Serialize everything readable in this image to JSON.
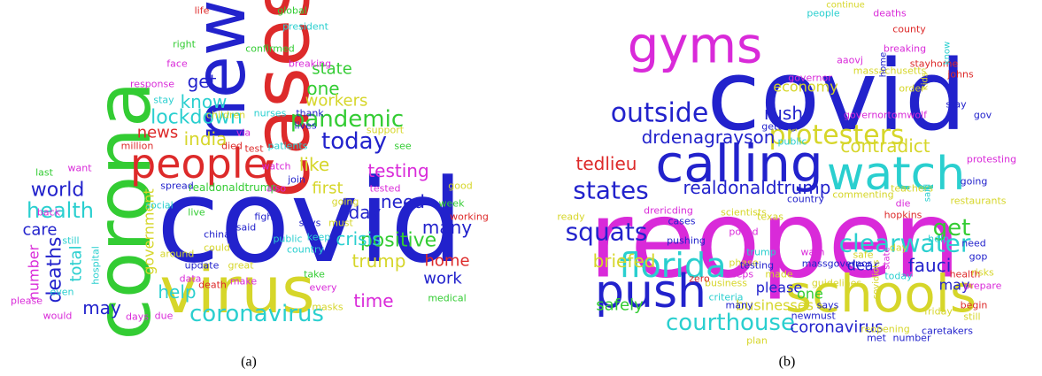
{
  "panels": [
    {
      "caption": "(a)",
      "words": [
        {
          "text": "covid",
          "color": "#2222cc"
        },
        {
          "text": "virus",
          "color": "#d6d62a"
        },
        {
          "text": "corona",
          "color": "#33cc33"
        },
        {
          "text": "cases",
          "color": "#dd2a2a"
        },
        {
          "text": "new",
          "color": "#2222cc"
        },
        {
          "text": "people",
          "color": "#dd2a2a"
        },
        {
          "text": "pandemic",
          "color": "#33cc33"
        },
        {
          "text": "today",
          "color": "#2222cc"
        },
        {
          "text": "coronavirus",
          "color": "#2acfcf"
        },
        {
          "text": "lockdown",
          "color": "#2acfcf"
        },
        {
          "text": "health",
          "color": "#2acfcf"
        },
        {
          "text": "world",
          "color": "#2222cc"
        },
        {
          "text": "care",
          "color": "#2222cc"
        },
        {
          "text": "deaths",
          "color": "#2222cc"
        },
        {
          "text": "total",
          "color": "#2acfcf"
        },
        {
          "text": "number",
          "color": "#d92ad9"
        },
        {
          "text": "news",
          "color": "#dd2a2a"
        },
        {
          "text": "india",
          "color": "#d6d62a"
        },
        {
          "text": "know",
          "color": "#2acfcf"
        },
        {
          "text": "get",
          "color": "#2222cc"
        },
        {
          "text": "one",
          "color": "#33cc33"
        },
        {
          "text": "state",
          "color": "#33cc33"
        },
        {
          "text": "workers",
          "color": "#d6d62a"
        },
        {
          "text": "like",
          "color": "#d6d62a"
        },
        {
          "text": "testing",
          "color": "#d92ad9"
        },
        {
          "text": "first",
          "color": "#d6d62a"
        },
        {
          "text": "need",
          "color": "#2222cc"
        },
        {
          "text": "positive",
          "color": "#33cc33"
        },
        {
          "text": "many",
          "color": "#2222cc"
        },
        {
          "text": "day",
          "color": "#2222cc"
        },
        {
          "text": "home",
          "color": "#dd2a2a"
        },
        {
          "text": "work",
          "color": "#2222cc"
        },
        {
          "text": "trump",
          "color": "#d6d62a"
        },
        {
          "text": "crisis",
          "color": "#2acfcf"
        },
        {
          "text": "time",
          "color": "#d92ad9"
        },
        {
          "text": "help",
          "color": "#2acfcf"
        },
        {
          "text": "may",
          "color": "#2222cc"
        },
        {
          "text": "government",
          "color": "#d6d62a"
        },
        {
          "text": "life",
          "color": "#dd2a2a"
        },
        {
          "text": "global",
          "color": "#33cc33"
        },
        {
          "text": "president",
          "color": "#2acfcf"
        },
        {
          "text": "right",
          "color": "#33cc33"
        },
        {
          "text": "face",
          "color": "#d92ad9"
        },
        {
          "text": "confirmed",
          "color": "#33cc33"
        },
        {
          "text": "breaking",
          "color": "#d92ad9"
        },
        {
          "text": "response",
          "color": "#d92ad9"
        },
        {
          "text": "stay",
          "color": "#2acfcf"
        },
        {
          "text": "children",
          "color": "#d6d62a"
        },
        {
          "text": "via",
          "color": "#d92ad9"
        },
        {
          "text": "nurses",
          "color": "#2acfcf"
        },
        {
          "text": "thank",
          "color": "#2222cc"
        },
        {
          "text": "lives",
          "color": "#2222cc"
        },
        {
          "text": "died",
          "color": "#dd2a2a"
        },
        {
          "text": "test",
          "color": "#dd2a2a"
        },
        {
          "text": "million",
          "color": "#dd2a2a"
        },
        {
          "text": "patients",
          "color": "#2acfcf"
        },
        {
          "text": "watch",
          "color": "#d92ad9"
        },
        {
          "text": "join",
          "color": "#2222cc"
        },
        {
          "text": "see",
          "color": "#33cc33"
        },
        {
          "text": "want",
          "color": "#d92ad9"
        },
        {
          "text": "last",
          "color": "#33cc33"
        },
        {
          "text": "back",
          "color": "#d92ad9"
        },
        {
          "text": "realdonaldtrump",
          "color": "#33cc33"
        },
        {
          "text": "also",
          "color": "#d92ad9"
        },
        {
          "text": "tested",
          "color": "#d92ad9"
        },
        {
          "text": "support",
          "color": "#d6d62a"
        },
        {
          "text": "spread",
          "color": "#2222cc"
        },
        {
          "text": "social",
          "color": "#2acfcf"
        },
        {
          "text": "good",
          "color": "#d6d62a"
        },
        {
          "text": "week",
          "color": "#33cc33"
        },
        {
          "text": "working",
          "color": "#dd2a2a"
        },
        {
          "text": "still",
          "color": "#2acfcf"
        },
        {
          "text": "hospital",
          "color": "#2acfcf"
        },
        {
          "text": "around",
          "color": "#d6d62a"
        },
        {
          "text": "live",
          "color": "#33cc33"
        },
        {
          "text": "china",
          "color": "#2222cc"
        },
        {
          "text": "could",
          "color": "#d6d62a"
        },
        {
          "text": "said",
          "color": "#2222cc"
        },
        {
          "text": "fight",
          "color": "#2222cc"
        },
        {
          "text": "says",
          "color": "#2222cc"
        },
        {
          "text": "keep",
          "color": "#2acfcf"
        },
        {
          "text": "must",
          "color": "#d6d62a"
        },
        {
          "text": "public",
          "color": "#2acfcf"
        },
        {
          "text": "country",
          "color": "#2acfcf"
        },
        {
          "text": "update",
          "color": "#2222cc"
        },
        {
          "text": "great",
          "color": "#d6d62a"
        },
        {
          "text": "death",
          "color": "#dd2a2a"
        },
        {
          "text": "data",
          "color": "#d92ad9"
        },
        {
          "text": "make",
          "color": "#d92ad9"
        },
        {
          "text": "take",
          "color": "#33cc33"
        },
        {
          "text": "every",
          "color": "#d92ad9"
        },
        {
          "text": "masks",
          "color": "#d6d62a"
        },
        {
          "text": "days",
          "color": "#d92ad9"
        },
        {
          "text": "due",
          "color": "#d92ad9"
        },
        {
          "text": "medical",
          "color": "#33cc33"
        },
        {
          "text": "please",
          "color": "#d92ad9"
        },
        {
          "text": "even",
          "color": "#2acfcf"
        },
        {
          "text": "would",
          "color": "#d92ad9"
        },
        {
          "text": "going",
          "color": "#d6d62a"
        }
      ]
    },
    {
      "caption": "(b)",
      "words": [
        {
          "text": "reopen",
          "color": "#d92ad9"
        },
        {
          "text": "covid",
          "color": "#2222cc"
        },
        {
          "text": "calling",
          "color": "#2222cc"
        },
        {
          "text": "watch",
          "color": "#2acfcf"
        },
        {
          "text": "gyms",
          "color": "#d92ad9"
        },
        {
          "text": "schools",
          "color": "#d6d62a"
        },
        {
          "text": "push",
          "color": "#2222cc"
        },
        {
          "text": "florida",
          "color": "#2acfcf"
        },
        {
          "text": "outside",
          "color": "#2222cc"
        },
        {
          "text": "protesters",
          "color": "#d6d62a"
        },
        {
          "text": "states",
          "color": "#2222cc"
        },
        {
          "text": "squats",
          "color": "#2222cc"
        },
        {
          "text": "courthouse",
          "color": "#2acfcf"
        },
        {
          "text": "clearwater",
          "color": "#2acfcf"
        },
        {
          "text": "get",
          "color": "#33cc33"
        },
        {
          "text": "fauci",
          "color": "#2222cc"
        },
        {
          "text": "dear",
          "color": "#2222cc"
        },
        {
          "text": "drdenagrayson",
          "color": "#2222cc"
        },
        {
          "text": "contradict",
          "color": "#d6d62a"
        },
        {
          "text": "realdonaldtrump",
          "color": "#2222cc"
        },
        {
          "text": "tedlieu",
          "color": "#dd2a2a"
        },
        {
          "text": "briefed",
          "color": "#d6d62a"
        },
        {
          "text": "rush",
          "color": "#2222cc"
        },
        {
          "text": "economy",
          "color": "#d6d62a"
        },
        {
          "text": "please",
          "color": "#2222cc"
        },
        {
          "text": "one",
          "color": "#33cc33"
        },
        {
          "text": "businesses",
          "color": "#d6d62a"
        },
        {
          "text": "coronavirus",
          "color": "#2222cc"
        },
        {
          "text": "safely",
          "color": "#33cc33"
        },
        {
          "text": "may",
          "color": "#2222cc"
        },
        {
          "text": "people",
          "color": "#2acfcf"
        },
        {
          "text": "deaths",
          "color": "#d92ad9"
        },
        {
          "text": "continue",
          "color": "#d6d62a"
        },
        {
          "text": "county",
          "color": "#dd2a2a"
        },
        {
          "text": "breaking",
          "color": "#d92ad9"
        },
        {
          "text": "stayhome",
          "color": "#dd2a2a"
        },
        {
          "text": "johns",
          "color": "#dd2a2a"
        },
        {
          "text": "massachusetts",
          "color": "#d6d62a"
        },
        {
          "text": "know",
          "color": "#2acfcf"
        },
        {
          "text": "kids",
          "color": "#d6d62a"
        },
        {
          "text": "health",
          "color": "#dd2a2a"
        },
        {
          "text": "restaurants",
          "color": "#d6d62a"
        },
        {
          "text": "hopkins",
          "color": "#dd2a2a"
        },
        {
          "text": "need",
          "color": "#2222cc"
        },
        {
          "text": "gop",
          "color": "#2222cc"
        },
        {
          "text": "risks",
          "color": "#d6d62a"
        },
        {
          "text": "prepare",
          "color": "#d92ad9"
        },
        {
          "text": "begin",
          "color": "#dd2a2a"
        },
        {
          "text": "still",
          "color": "#d6d62a"
        },
        {
          "text": "friday",
          "color": "#d6d62a"
        },
        {
          "text": "number",
          "color": "#2222cc"
        },
        {
          "text": "caretakers",
          "color": "#2222cc"
        },
        {
          "text": "protesting",
          "color": "#d92ad9"
        },
        {
          "text": "gov",
          "color": "#2222cc"
        },
        {
          "text": "stay",
          "color": "#2222cc"
        },
        {
          "text": "going",
          "color": "#2222cc"
        },
        {
          "text": "aaovj",
          "color": "#d92ad9"
        },
        {
          "text": "home",
          "color": "#2222cc"
        },
        {
          "text": "governor",
          "color": "#d92ad9"
        },
        {
          "text": "order",
          "color": "#d6d62a"
        },
        {
          "text": "governortomwolf",
          "color": "#d92ad9"
        },
        {
          "text": "teachers",
          "color": "#d6d62a"
        },
        {
          "text": "commenting",
          "color": "#d6d62a"
        },
        {
          "text": "said",
          "color": "#2acfcf"
        },
        {
          "text": "die",
          "color": "#d92ad9"
        },
        {
          "text": "country",
          "color": "#2222cc"
        },
        {
          "text": "drericding",
          "color": "#d92ad9"
        },
        {
          "text": "scientists",
          "color": "#d6d62a"
        },
        {
          "text": "cases",
          "color": "#2222cc"
        },
        {
          "text": "texas",
          "color": "#d6d62a"
        },
        {
          "text": "ready",
          "color": "#d6d62a"
        },
        {
          "text": "pushing",
          "color": "#2222cc"
        },
        {
          "text": "trump",
          "color": "#2acfcf"
        },
        {
          "text": "phase",
          "color": "#d6d62a"
        },
        {
          "text": "warn",
          "color": "#d92ad9"
        },
        {
          "text": "safe",
          "color": "#d6d62a"
        },
        {
          "text": "massgovernor",
          "color": "#2222cc"
        },
        {
          "text": "testing",
          "color": "#2222cc"
        },
        {
          "text": "covidiots",
          "color": "#d6d62a"
        },
        {
          "text": "state",
          "color": "#d92ad9"
        },
        {
          "text": "day",
          "color": "#d6d62a"
        },
        {
          "text": "today",
          "color": "#2acfcf"
        },
        {
          "text": "help",
          "color": "#2acfcf"
        },
        {
          "text": "business",
          "color": "#d6d62a"
        },
        {
          "text": "zero",
          "color": "#dd2a2a"
        },
        {
          "text": "keeps",
          "color": "#d92ad9"
        },
        {
          "text": "posed",
          "color": "#d92ad9"
        },
        {
          "text": "criteria",
          "color": "#2acfcf"
        },
        {
          "text": "made",
          "color": "#d6d62a"
        },
        {
          "text": "guidelines",
          "color": "#d6d62a"
        },
        {
          "text": "says",
          "color": "#2222cc"
        },
        {
          "text": "new",
          "color": "#2222cc"
        },
        {
          "text": "must",
          "color": "#2222cc"
        },
        {
          "text": "many",
          "color": "#2222cc"
        },
        {
          "text": "plan",
          "color": "#d6d62a"
        },
        {
          "text": "met",
          "color": "#2222cc"
        },
        {
          "text": "reopening",
          "color": "#d6d62a"
        },
        {
          "text": "getting",
          "color": "#2222cc"
        },
        {
          "text": "public",
          "color": "#2acfcf"
        }
      ]
    }
  ]
}
